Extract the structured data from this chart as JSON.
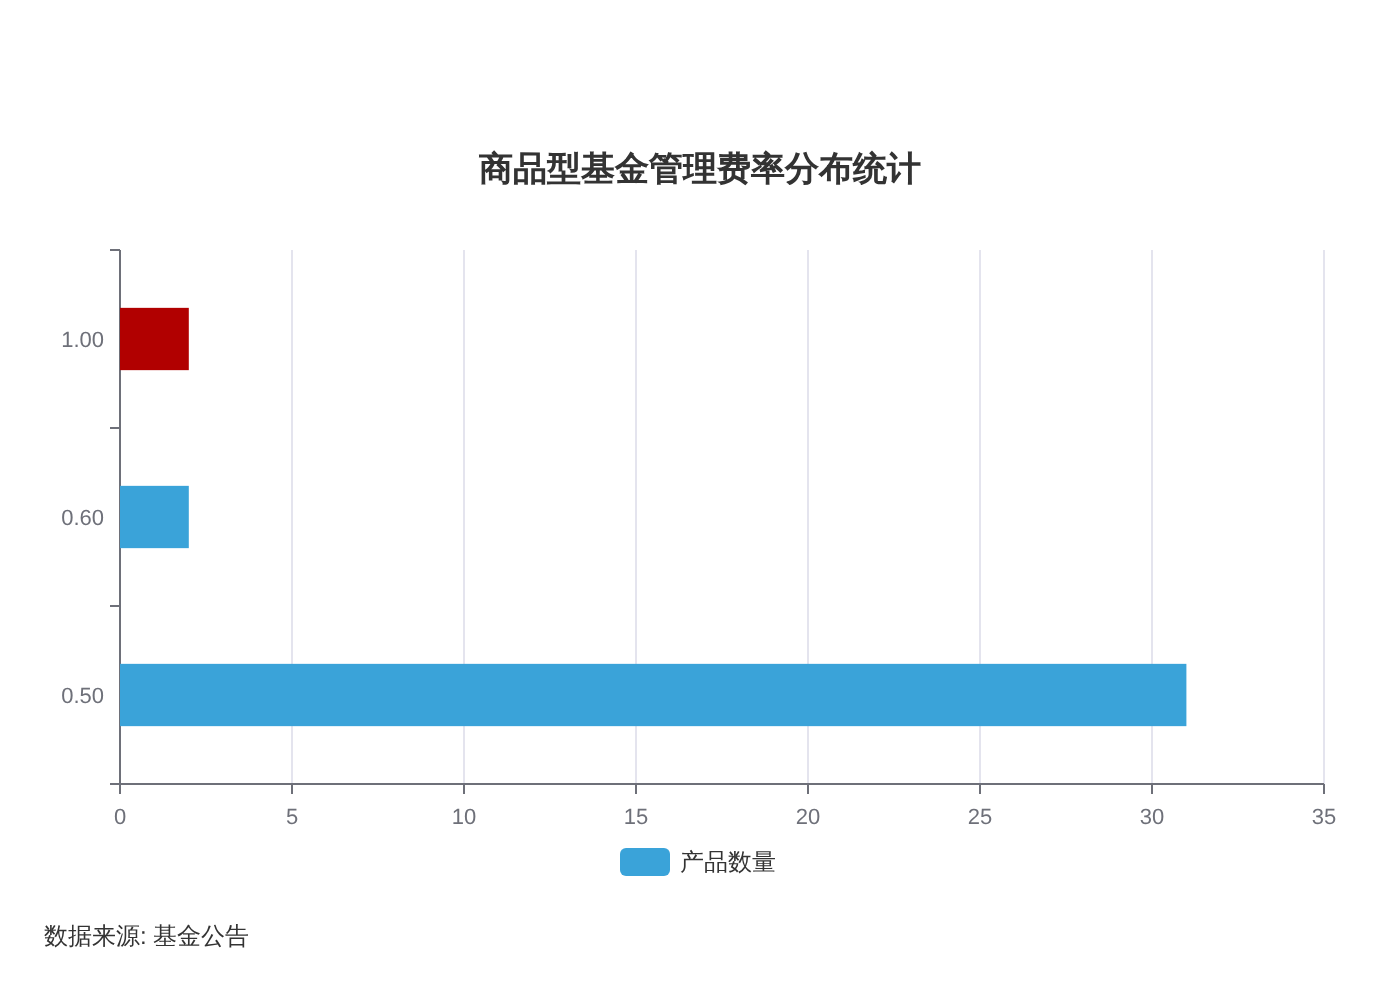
{
  "chart_data": {
    "type": "bar",
    "orientation": "horizontal",
    "title": "商品型基金管理费率分布统计",
    "categories": [
      "1.00",
      "0.60",
      "0.50"
    ],
    "series": [
      {
        "name": "产品数量",
        "color": "#3aa3d9",
        "colors": [
          "#b10000",
          "#3aa3d9",
          "#3aa3d9"
        ],
        "values": [
          2,
          2,
          31
        ]
      }
    ],
    "xlim": [
      0,
      35
    ],
    "xticks": [
      0,
      5,
      10,
      15,
      20,
      25,
      30,
      35
    ],
    "grid": "x",
    "legend": "bottom",
    "annotations": [
      "数据来源: 基金公告"
    ]
  }
}
